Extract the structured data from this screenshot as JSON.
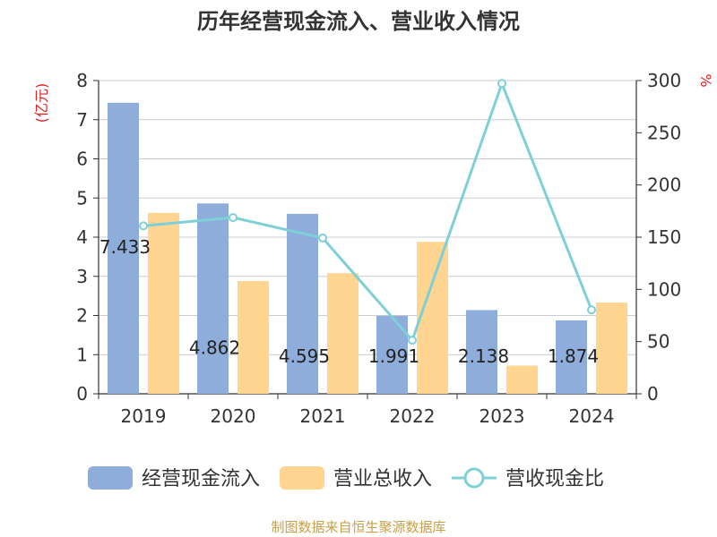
{
  "chart_data": {
    "type": "bar",
    "title": "历年经营现金流入、营业收入情况",
    "categories": [
      "2019",
      "2020",
      "2021",
      "2022",
      "2023",
      "2024"
    ],
    "series": [
      {
        "name": "经营现金流入",
        "type": "bar",
        "axis": "left",
        "color": "#8EADDA",
        "values": [
          7.433,
          4.862,
          4.595,
          1.991,
          2.138,
          1.874
        ]
      },
      {
        "name": "营业总收入",
        "type": "bar",
        "axis": "left",
        "color": "#FFD591",
        "values": [
          4.62,
          2.88,
          3.08,
          3.88,
          0.72,
          2.33
        ]
      },
      {
        "name": "营收现金比",
        "type": "line",
        "axis": "right",
        "color": "#7FD0D6",
        "values": [
          160.8,
          168.8,
          149.2,
          51.3,
          297.2,
          80.4
        ]
      }
    ],
    "left_axis": {
      "unit": "(亿元)",
      "unit_color": "#E02020",
      "min": 0,
      "max": 8,
      "ticks": [
        "0",
        "1",
        "2",
        "3",
        "4",
        "5",
        "6",
        "7",
        "8"
      ]
    },
    "right_axis": {
      "unit": "%",
      "unit_color": "#E02020",
      "min": 0,
      "max": 300,
      "ticks": [
        "0",
        "50",
        "100",
        "150",
        "200",
        "250",
        "300"
      ]
    },
    "data_labels": [
      "7.433",
      "4.862",
      "4.595",
      "1.991",
      "2.138",
      "1.874"
    ],
    "grid": true,
    "legend_position": "bottom",
    "source_text": "制图数据来自恒生聚源数据库",
    "source_color": "#C8A04A"
  }
}
